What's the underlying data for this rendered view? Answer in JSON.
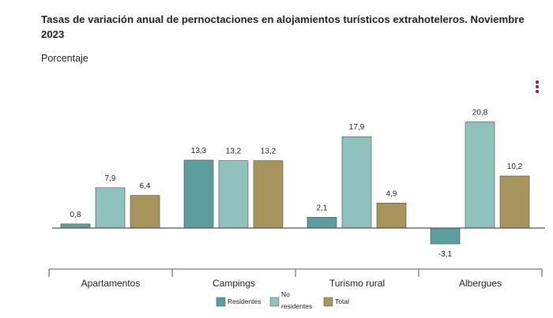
{
  "title": "Tasas de variación anual de pernoctaciones en alojamientos turísticos extrahoteleros. Noviembre 2023",
  "subtitle": "Porcentaje",
  "menu_icon": "more-vertical-icon",
  "colors": {
    "residentes": "#5b9e9b",
    "no_residentes": "#8fc2bd",
    "total": "#a8955c",
    "axis": "#555555"
  },
  "chart_data": {
    "type": "bar",
    "categories": [
      "Apartamentos",
      "Campings",
      "Turismo rural",
      "Albergues"
    ],
    "series": [
      {
        "name": "Residentes",
        "values": [
          0.8,
          13.3,
          2.1,
          -3.1
        ]
      },
      {
        "name": "No residentes",
        "values": [
          7.9,
          13.2,
          17.9,
          20.8
        ]
      },
      {
        "name": "Total",
        "values": [
          6.4,
          13.2,
          4.9,
          10.2
        ]
      }
    ],
    "value_labels": [
      [
        "0,8",
        "13,3",
        "2,1",
        "-3,1"
      ],
      [
        "7,9",
        "13,2",
        "17,9",
        "20,8"
      ],
      [
        "6,4",
        "13,2",
        "4,9",
        "10,2"
      ]
    ],
    "ylim": [
      -5,
      22
    ],
    "grid": false,
    "legend_position": "bottom-center"
  }
}
